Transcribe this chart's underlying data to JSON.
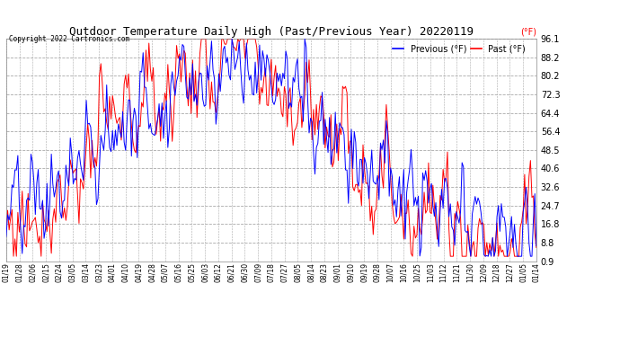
{
  "title": "Outdoor Temperature Daily High (Past/Previous Year) 20220119",
  "copyright_text": "Copyright 2022 Cartronics.com",
  "ylabel": "(°F)",
  "yticks": [
    0.9,
    8.8,
    16.8,
    24.7,
    32.6,
    40.6,
    48.5,
    56.4,
    64.4,
    72.3,
    80.2,
    88.2,
    96.1
  ],
  "ylim": [
    0.9,
    96.1
  ],
  "background_color": "#ffffff",
  "grid_color": "#aaaaaa",
  "past_color": "#ff0000",
  "previous_color": "#0000ff",
  "legend_labels": [
    "Previous (°F)",
    "Past (°F)"
  ],
  "xtick_labels": [
    "01/19",
    "01/28",
    "02/06",
    "02/15",
    "02/24",
    "03/05",
    "03/14",
    "03/23",
    "04/01",
    "04/10",
    "04/19",
    "04/28",
    "05/07",
    "05/16",
    "05/25",
    "06/03",
    "06/12",
    "06/21",
    "06/30",
    "07/09",
    "07/18",
    "07/27",
    "08/05",
    "08/14",
    "08/23",
    "09/01",
    "09/10",
    "09/19",
    "09/28",
    "10/07",
    "10/16",
    "10/25",
    "11/03",
    "11/12",
    "11/21",
    "11/30",
    "12/09",
    "12/18",
    "12/27",
    "01/05",
    "01/14"
  ],
  "figsize": [
    6.9,
    3.75
  ],
  "dpi": 100
}
